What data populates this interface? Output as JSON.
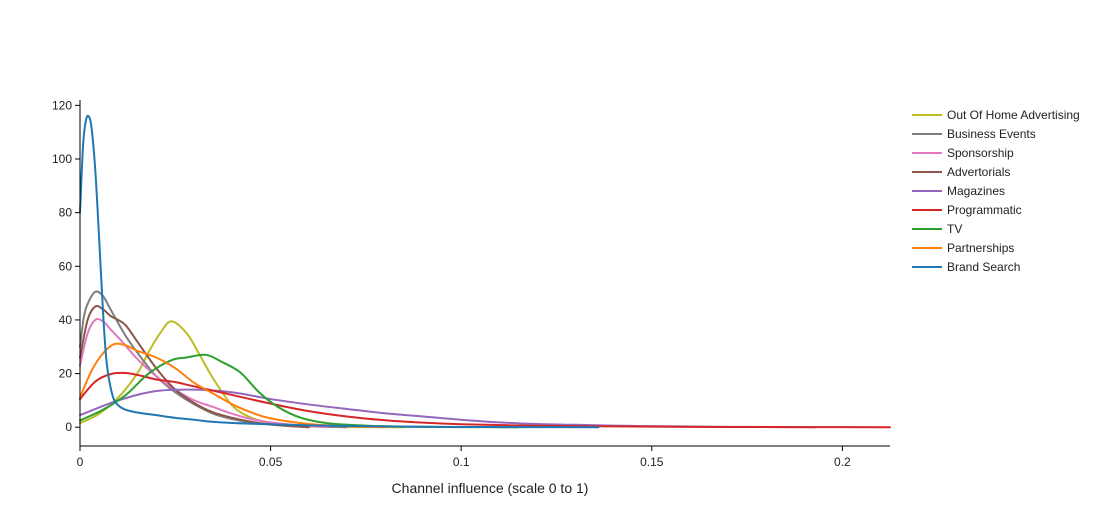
{
  "chart_data": {
    "type": "line",
    "title": "",
    "xlabel": "Channel influence (scale 0 to 1)",
    "ylabel": "",
    "xlim": [
      0,
      0.2125
    ],
    "ylim": [
      -7,
      122
    ],
    "xticks": [
      0,
      0.05,
      0.1,
      0.15,
      0.2
    ],
    "xtick_labels": [
      "0",
      "0.05",
      "0.1",
      "0.15",
      "0.2"
    ],
    "yticks": [
      0,
      20,
      40,
      60,
      80,
      100,
      120
    ],
    "ytick_labels": [
      "0",
      "20",
      "40",
      "60",
      "80",
      "100",
      "120"
    ],
    "grid": false,
    "legend_position": "right",
    "series": [
      {
        "name": "Out Of Home Advertising",
        "color": "#bcbd22",
        "x": [
          0,
          0.005,
          0.01,
          0.015,
          0.018,
          0.021,
          0.024,
          0.028,
          0.031,
          0.035,
          0.04,
          0.045,
          0.05,
          0.055,
          0.06,
          0.065,
          0.07,
          0.075,
          0.08,
          0.085
        ],
        "y": [
          1.5,
          5,
          11,
          20,
          28,
          35,
          39.5,
          35,
          28,
          18,
          8,
          3.5,
          1.6,
          0.8,
          0.4,
          0.2,
          0.1,
          0.05,
          0.02,
          0
        ]
      },
      {
        "name": "Business Events",
        "color": "#7f7f7f",
        "x": [
          0,
          0.001,
          0.002,
          0.004,
          0.006,
          0.008,
          0.012,
          0.016,
          0.02,
          0.025,
          0.03,
          0.035,
          0.04,
          0.045,
          0.05,
          0.06,
          0.07
        ],
        "y": [
          30,
          41,
          46,
          50.5,
          49,
          44,
          34,
          26,
          19,
          13,
          8.5,
          5,
          3,
          1.7,
          1,
          0.3,
          0
        ],
        "y_unused": []
      },
      {
        "name": "Sponsorship",
        "color": "#e377c2",
        "x": [
          0,
          0.002,
          0.004,
          0.006,
          0.008,
          0.011,
          0.015,
          0.02,
          0.025,
          0.03,
          0.035,
          0.04,
          0.045,
          0.05,
          0.055,
          0.06,
          0.065
        ],
        "y": [
          23,
          35,
          40,
          39.5,
          36.5,
          32,
          25.5,
          19,
          14,
          10,
          7.5,
          5,
          3,
          1.8,
          1,
          0.4,
          0
        ]
      },
      {
        "name": "Advertorials",
        "color": "#8c564b",
        "x": [
          0,
          0.002,
          0.004,
          0.006,
          0.008,
          0.01,
          0.012,
          0.015,
          0.02,
          0.025,
          0.03,
          0.035,
          0.04,
          0.045,
          0.05,
          0.055,
          0.06
        ],
        "y": [
          26,
          40,
          45,
          44,
          41.5,
          40,
          38,
          32,
          22,
          14,
          9,
          5.5,
          3.5,
          2,
          1,
          0.4,
          0
        ]
      },
      {
        "name": "Magazines",
        "color": "#9467bd",
        "x": [
          0,
          0.01,
          0.02,
          0.03,
          0.04,
          0.05,
          0.06,
          0.07,
          0.08,
          0.09,
          0.1,
          0.11,
          0.12,
          0.13,
          0.14,
          0.15,
          0.16,
          0.17,
          0.18,
          0.193
        ],
        "y": [
          4.5,
          10,
          13.5,
          14,
          13,
          10.5,
          8.5,
          6.8,
          5.2,
          4,
          2.8,
          1.8,
          1.2,
          0.9,
          0.6,
          0.4,
          0.25,
          0.15,
          0.08,
          0
        ]
      },
      {
        "name": "Programmatic",
        "color": "#d62728",
        "x": [
          0,
          0.004,
          0.008,
          0.012,
          0.016,
          0.02,
          0.025,
          0.03,
          0.04,
          0.05,
          0.06,
          0.07,
          0.08,
          0.09,
          0.1,
          0.12,
          0.14,
          0.16,
          0.18,
          0.2,
          0.2125
        ],
        "y": [
          10.5,
          17,
          19.8,
          20.2,
          19.2,
          17.8,
          16.8,
          15.2,
          12,
          8.8,
          6,
          4,
          2.6,
          1.7,
          1.1,
          0.55,
          0.3,
          0.15,
          0.07,
          0.02,
          0
        ]
      },
      {
        "name": "TV",
        "color": "#2ca02c",
        "x": [
          0,
          0.006,
          0.012,
          0.018,
          0.024,
          0.028,
          0.033,
          0.037,
          0.042,
          0.047,
          0.052,
          0.058,
          0.065,
          0.075,
          0.085,
          0.1,
          0.115
        ],
        "y": [
          2.5,
          6.5,
          12,
          20,
          25,
          26,
          27,
          24.5,
          20.5,
          13,
          7.5,
          3.5,
          1.5,
          0.6,
          0.2,
          0.05,
          0
        ]
      },
      {
        "name": "Partnerships",
        "color": "#ff7f0e",
        "x": [
          0,
          0.003,
          0.006,
          0.009,
          0.012,
          0.015,
          0.02,
          0.025,
          0.03,
          0.035,
          0.04,
          0.045,
          0.05,
          0.06,
          0.07,
          0.08
        ],
        "y": [
          11,
          21,
          27.5,
          31,
          30.5,
          28.5,
          26,
          22,
          16.5,
          12.5,
          8.5,
          5.5,
          3.3,
          1.2,
          0.4,
          0
        ]
      },
      {
        "name": "Brand Search",
        "color": "#1f77b4",
        "x": [
          0,
          0.0008,
          0.0015,
          0.0022,
          0.003,
          0.004,
          0.005,
          0.006,
          0.007,
          0.0085,
          0.01,
          0.012,
          0.015,
          0.02,
          0.025,
          0.03,
          0.035,
          0.045,
          0.06,
          0.08,
          0.1,
          0.12,
          0.136
        ],
        "y": [
          80,
          105,
          114,
          116,
          112,
          96,
          71,
          44,
          24,
          12,
          8.2,
          6.5,
          5.5,
          4.5,
          3.5,
          2.8,
          2,
          1.3,
          0.7,
          0.3,
          0.1,
          0.03,
          0
        ]
      }
    ]
  }
}
